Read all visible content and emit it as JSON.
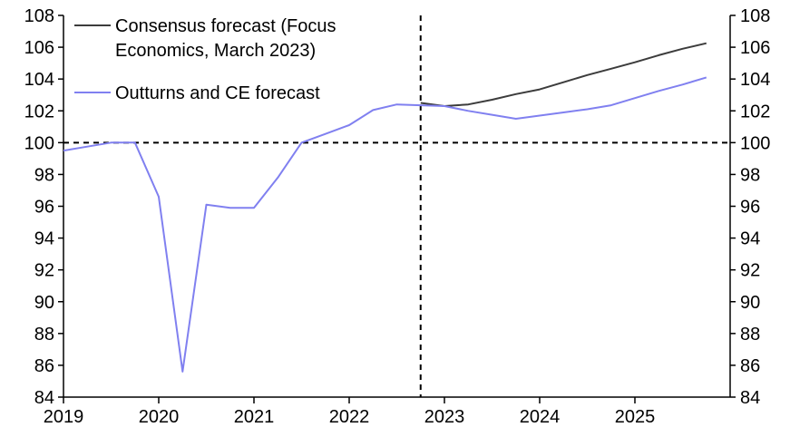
{
  "chart_data": {
    "type": "line",
    "title": "",
    "xlabel": "",
    "ylabel": "",
    "ylim": [
      84,
      108
    ],
    "yticks": [
      84,
      86,
      88,
      90,
      92,
      94,
      96,
      98,
      100,
      102,
      104,
      106,
      108
    ],
    "xlim": [
      2019.0,
      2025.75
    ],
    "xticks": [
      {
        "value": 2019,
        "label": "2019"
      },
      {
        "value": 2020,
        "label": "2020"
      },
      {
        "value": 2021,
        "label": "2021"
      },
      {
        "value": 2022,
        "label": "2022"
      },
      {
        "value": 2023,
        "label": "2023"
      },
      {
        "value": 2024,
        "label": "2024"
      },
      {
        "value": 2025,
        "label": "2025"
      }
    ],
    "reference_lines": {
      "y": 100,
      "x": 2022.75
    },
    "legend_position": "top-left",
    "series": [
      {
        "name": "Consensus forecast (Focus Economics, March 2023)",
        "name_lines": [
          "Consensus forecast (Focus",
          "Economics, March 2023)"
        ],
        "color": "#3c3c3c",
        "x": [
          2022.75,
          2023.0,
          2023.25,
          2023.5,
          2023.75,
          2024.0,
          2024.25,
          2024.5,
          2024.75,
          2025.0,
          2025.25,
          2025.5,
          2025.75
        ],
        "y": [
          102.5,
          102.3,
          102.4,
          102.7,
          103.05,
          103.35,
          103.8,
          104.25,
          104.65,
          105.05,
          105.5,
          105.9,
          106.25
        ]
      },
      {
        "name": "Outturns and CE forecast",
        "name_lines": [
          "Outturns and CE forecast"
        ],
        "color": "#8080f0",
        "x": [
          2019.0,
          2019.25,
          2019.5,
          2019.75,
          2020.0,
          2020.25,
          2020.5,
          2020.75,
          2021.0,
          2021.25,
          2021.5,
          2021.75,
          2022.0,
          2022.25,
          2022.5,
          2022.75,
          2023.0,
          2023.25,
          2023.5,
          2023.75,
          2024.0,
          2024.25,
          2024.5,
          2024.75,
          2025.0,
          2025.25,
          2025.5,
          2025.75
        ],
        "y": [
          99.5,
          99.75,
          100.0,
          100.0,
          96.6,
          85.6,
          96.1,
          95.9,
          95.9,
          97.8,
          100.0,
          100.55,
          101.1,
          102.05,
          102.4,
          102.35,
          102.3,
          102.0,
          101.75,
          101.5,
          101.7,
          101.9,
          102.1,
          102.35,
          102.8,
          103.25,
          103.65,
          104.1
        ]
      }
    ]
  }
}
